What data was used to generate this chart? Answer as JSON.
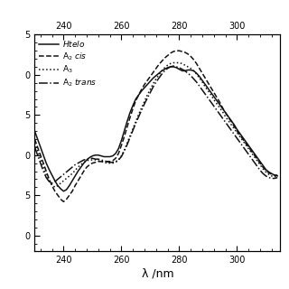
{
  "xlabel": "λ /nm",
  "xmin": 230,
  "xmax": 315,
  "ymin": -12,
  "ymax": 15,
  "yticks": [
    -10,
    -5,
    0,
    5,
    10,
    15
  ],
  "ytick_labels": [
    "0",
    "5",
    "0",
    "5",
    "0",
    "5"
  ],
  "xticks_bottom": [
    240,
    260,
    280,
    300
  ],
  "xticks_top": [
    240,
    260,
    280,
    300
  ],
  "line_styles": [
    "-",
    "--",
    ":",
    "-."
  ],
  "line_color": "#111111",
  "line_width": 1.1,
  "background": "#ffffff",
  "htelo_x": [
    230,
    231,
    232,
    233,
    234,
    235,
    236,
    237,
    238,
    239,
    240,
    241,
    242,
    243,
    244,
    245,
    246,
    247,
    248,
    249,
    250,
    251,
    252,
    253,
    254,
    255,
    256,
    257,
    258,
    259,
    260,
    261,
    262,
    263,
    264,
    265,
    266,
    267,
    268,
    269,
    270,
    271,
    272,
    273,
    274,
    275,
    276,
    277,
    278,
    279,
    280,
    281,
    282,
    283,
    284,
    285,
    286,
    287,
    288,
    289,
    290,
    291,
    292,
    293,
    294,
    295,
    296,
    297,
    298,
    299,
    300,
    301,
    302,
    303,
    304,
    305,
    306,
    307,
    308,
    309,
    310,
    311,
    312,
    313,
    314
  ],
  "htelo_y": [
    3.0,
    2.0,
    1.0,
    0.0,
    -1.0,
    -1.8,
    -2.5,
    -3.2,
    -3.8,
    -4.2,
    -4.5,
    -4.3,
    -3.8,
    -3.2,
    -2.6,
    -2.0,
    -1.5,
    -1.0,
    -0.6,
    -0.3,
    -0.1,
    0.0,
    0.0,
    -0.1,
    -0.2,
    -0.2,
    -0.2,
    -0.1,
    0.2,
    0.8,
    1.8,
    3.0,
    4.2,
    5.3,
    6.2,
    7.0,
    7.5,
    8.0,
    8.4,
    8.8,
    9.2,
    9.6,
    9.9,
    10.2,
    10.5,
    10.7,
    10.9,
    11.0,
    11.0,
    10.9,
    10.7,
    10.5,
    10.5,
    10.6,
    10.6,
    10.5,
    10.2,
    9.8,
    9.3,
    8.8,
    8.3,
    7.8,
    7.3,
    6.8,
    6.3,
    5.8,
    5.3,
    4.8,
    4.3,
    3.8,
    3.2,
    2.7,
    2.2,
    1.7,
    1.2,
    0.7,
    0.2,
    -0.3,
    -0.8,
    -1.3,
    -1.8,
    -2.1,
    -2.3,
    -2.5,
    -2.6
  ],
  "a2cis_x": [
    230,
    231,
    232,
    233,
    234,
    235,
    236,
    237,
    238,
    239,
    240,
    241,
    242,
    243,
    244,
    245,
    246,
    247,
    248,
    249,
    250,
    251,
    252,
    253,
    254,
    255,
    256,
    257,
    258,
    259,
    260,
    261,
    262,
    263,
    264,
    265,
    266,
    267,
    268,
    269,
    270,
    271,
    272,
    273,
    274,
    275,
    276,
    277,
    278,
    279,
    280,
    281,
    282,
    283,
    284,
    285,
    286,
    287,
    288,
    289,
    290,
    291,
    292,
    293,
    294,
    295,
    296,
    297,
    298,
    299,
    300,
    301,
    302,
    303,
    304,
    305,
    306,
    307,
    308,
    309,
    310,
    311,
    312,
    313,
    314
  ],
  "a2cis_y": [
    2.0,
    1.0,
    0.0,
    -1.0,
    -2.0,
    -3.0,
    -3.8,
    -4.5,
    -5.0,
    -5.5,
    -5.8,
    -5.5,
    -5.0,
    -4.5,
    -3.8,
    -3.2,
    -2.6,
    -2.0,
    -1.5,
    -1.2,
    -1.0,
    -0.9,
    -0.8,
    -0.8,
    -0.8,
    -0.8,
    -0.8,
    -0.7,
    -0.4,
    0.2,
    1.2,
    2.3,
    3.5,
    4.7,
    5.8,
    6.8,
    7.5,
    8.2,
    8.8,
    9.3,
    9.8,
    10.3,
    10.8,
    11.3,
    11.7,
    12.1,
    12.4,
    12.7,
    12.9,
    13.0,
    13.0,
    12.9,
    12.8,
    12.6,
    12.3,
    11.9,
    11.4,
    10.8,
    10.2,
    9.6,
    9.0,
    8.4,
    7.8,
    7.2,
    6.6,
    5.9,
    5.3,
    4.7,
    4.2,
    3.6,
    3.0,
    2.5,
    2.0,
    1.5,
    1.0,
    0.5,
    0.0,
    -0.5,
    -1.0,
    -1.5,
    -1.9,
    -2.2,
    -2.4,
    -2.5,
    -2.5
  ],
  "a3_x": [
    230,
    231,
    232,
    233,
    234,
    235,
    236,
    237,
    238,
    239,
    240,
    241,
    242,
    243,
    244,
    245,
    246,
    247,
    248,
    249,
    250,
    251,
    252,
    253,
    254,
    255,
    256,
    257,
    258,
    259,
    260,
    261,
    262,
    263,
    264,
    265,
    266,
    267,
    268,
    269,
    270,
    271,
    272,
    273,
    274,
    275,
    276,
    277,
    278,
    279,
    280,
    281,
    282,
    283,
    284,
    285,
    286,
    287,
    288,
    289,
    290,
    291,
    292,
    293,
    294,
    295,
    296,
    297,
    298,
    299,
    300,
    301,
    302,
    303,
    304,
    305,
    306,
    307,
    308,
    309,
    310,
    311,
    312,
    313,
    314
  ],
  "a3_y": [
    1.5,
    0.5,
    -0.5,
    -1.5,
    -2.5,
    -3.2,
    -3.7,
    -4.0,
    -3.8,
    -3.5,
    -3.2,
    -2.9,
    -2.6,
    -2.3,
    -1.9,
    -1.5,
    -1.2,
    -0.9,
    -0.7,
    -0.6,
    -0.6,
    -0.6,
    -0.7,
    -0.8,
    -0.9,
    -1.0,
    -1.0,
    -1.0,
    -0.9,
    -0.6,
    -0.1,
    0.6,
    1.5,
    2.4,
    3.3,
    4.2,
    5.1,
    5.9,
    6.7,
    7.5,
    8.2,
    8.9,
    9.5,
    10.0,
    10.5,
    10.9,
    11.2,
    11.4,
    11.5,
    11.5,
    11.5,
    11.4,
    11.2,
    11.0,
    10.8,
    10.5,
    10.1,
    9.6,
    9.1,
    8.5,
    8.0,
    7.5,
    6.9,
    6.4,
    5.9,
    5.4,
    4.8,
    4.3,
    3.8,
    3.3,
    2.8,
    2.3,
    1.8,
    1.3,
    0.8,
    0.3,
    -0.2,
    -0.7,
    -1.2,
    -1.7,
    -2.1,
    -2.4,
    -2.6,
    -2.7,
    -2.7
  ],
  "a2trans_x": [
    230,
    231,
    232,
    233,
    234,
    235,
    236,
    237,
    238,
    239,
    240,
    241,
    242,
    243,
    244,
    245,
    246,
    247,
    248,
    249,
    250,
    251,
    252,
    253,
    254,
    255,
    256,
    257,
    258,
    259,
    260,
    261,
    262,
    263,
    264,
    265,
    266,
    267,
    268,
    269,
    270,
    271,
    272,
    273,
    274,
    275,
    276,
    277,
    278,
    279,
    280,
    281,
    282,
    283,
    284,
    285,
    286,
    287,
    288,
    289,
    290,
    291,
    292,
    293,
    294,
    295,
    296,
    297,
    298,
    299,
    300,
    301,
    302,
    303,
    304,
    305,
    306,
    307,
    308,
    309,
    310,
    311,
    312,
    313,
    314
  ],
  "a2trans_y": [
    1.0,
    0.0,
    -1.0,
    -2.0,
    -2.8,
    -3.3,
    -3.5,
    -3.3,
    -3.0,
    -2.7,
    -2.4,
    -2.1,
    -1.8,
    -1.5,
    -1.2,
    -1.0,
    -0.8,
    -0.6,
    -0.5,
    -0.4,
    -0.4,
    -0.5,
    -0.5,
    -0.6,
    -0.7,
    -0.8,
    -0.9,
    -0.9,
    -0.8,
    -0.6,
    -0.2,
    0.5,
    1.3,
    2.2,
    3.1,
    4.0,
    4.8,
    5.6,
    6.4,
    7.1,
    7.8,
    8.5,
    9.1,
    9.6,
    10.1,
    10.5,
    10.8,
    11.0,
    11.1,
    11.0,
    10.9,
    10.7,
    10.5,
    10.2,
    9.9,
    9.5,
    9.1,
    8.6,
    8.1,
    7.6,
    7.1,
    6.6,
    6.1,
    5.6,
    5.1,
    4.6,
    4.1,
    3.6,
    3.1,
    2.6,
    2.1,
    1.6,
    1.1,
    0.6,
    0.1,
    -0.4,
    -0.9,
    -1.4,
    -1.9,
    -2.3,
    -2.6,
    -2.8,
    -2.9,
    -2.9,
    -2.8
  ]
}
